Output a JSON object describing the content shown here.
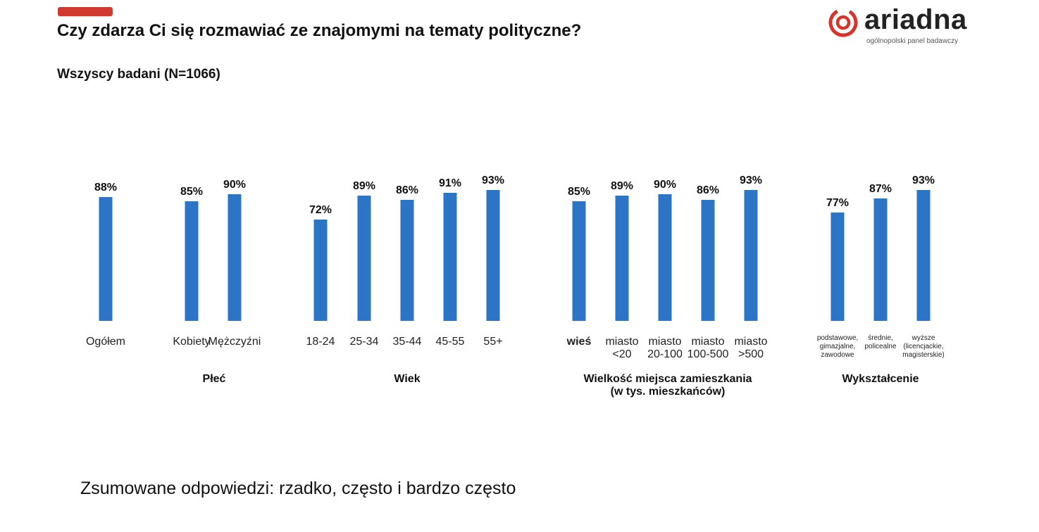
{
  "header": {
    "title": "Czy zdarza Ci się rozmawiać ze znajomymi na tematy polityczne?",
    "subtitle": "Wszyscy badani (N=1066)",
    "accent_color": "#d03a2f"
  },
  "logo": {
    "word": "ariadna",
    "tagline": "ogólnopolski panel badawczy",
    "mark_color": "#d8342a"
  },
  "footnote": "Zsumowane odpowiedzi: rzadko, często i bardzo często",
  "chart_data": {
    "type": "bar",
    "bar_color": "#2b74c6",
    "value_format": "percent",
    "ylim": [
      0,
      100
    ],
    "grid": false,
    "categories": [
      {
        "label": "Ogółem",
        "value": 88,
        "group": 0
      },
      {
        "label": "Kobiety",
        "value": 85,
        "group": 1
      },
      {
        "label": "Mężczyźni",
        "value": 90,
        "group": 1
      },
      {
        "label": "18-24",
        "value": 72,
        "group": 2
      },
      {
        "label": "25-34",
        "value": 89,
        "group": 2
      },
      {
        "label": "35-44",
        "value": 86,
        "group": 2
      },
      {
        "label": "45-55",
        "value": 91,
        "group": 2
      },
      {
        "label": "55+",
        "value": 93,
        "group": 2
      },
      {
        "label": "wieś",
        "value": 85,
        "group": 3,
        "bold": true
      },
      {
        "label": "miasto\n<20",
        "value": 89,
        "group": 3
      },
      {
        "label": "miasto\n20-100",
        "value": 90,
        "group": 3
      },
      {
        "label": "miasto\n100-500",
        "value": 86,
        "group": 3
      },
      {
        "label": "miasto\n>500",
        "value": 93,
        "group": 3
      },
      {
        "label": "podstawowe,\ngimazjalne,\nzawodowe",
        "value": 77,
        "group": 4,
        "small": true
      },
      {
        "label": "średnie,\npolicealne",
        "value": 87,
        "group": 4,
        "small": true
      },
      {
        "label": "wyższe\n(licencjackie,\nmagisterskie)",
        "value": 93,
        "group": 4,
        "small": true
      }
    ],
    "groups": [
      {
        "label": ""
      },
      {
        "label": "Płeć"
      },
      {
        "label": "Wiek"
      },
      {
        "label": "Wielkość miejsca zamieszkania\n(w tys. mieszkańców)"
      },
      {
        "label": "Wykształcenie"
      }
    ]
  }
}
